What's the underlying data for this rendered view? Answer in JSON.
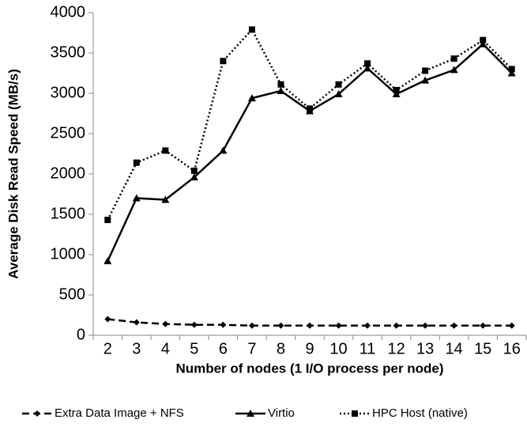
{
  "chart_data": {
    "type": "line",
    "x_label": "Number of nodes (1 I/O process per node)",
    "y_label": "Average Disk Read Speed (MB/s)",
    "categories": [
      "2",
      "3",
      "4",
      "5",
      "6",
      "7",
      "8",
      "9",
      "10",
      "11",
      "12",
      "13",
      "14",
      "15",
      "16"
    ],
    "series": [
      {
        "name": "Extra Data Image + NFS",
        "color": "#000000",
        "dash": "dashed",
        "marker": "diamond",
        "values": [
          200,
          160,
          140,
          130,
          130,
          120,
          120,
          120,
          120,
          120,
          120,
          120,
          120,
          120,
          120
        ]
      },
      {
        "name": "Virtio",
        "color": "#000000",
        "dash": "solid",
        "marker": "triangle",
        "values": [
          920,
          1700,
          1680,
          1960,
          2290,
          2940,
          3030,
          2780,
          2990,
          3310,
          2990,
          3160,
          3290,
          3610,
          3250
        ]
      },
      {
        "name": "HPC Host (native)",
        "color": "#000000",
        "dash": "dotted",
        "marker": "square",
        "values": [
          1430,
          2140,
          2290,
          2040,
          3400,
          3790,
          3110,
          2810,
          3110,
          3370,
          3040,
          3280,
          3430,
          3660,
          3300
        ]
      }
    ],
    "ylim": [
      0,
      4000
    ],
    "yticks": [
      0,
      500,
      1000,
      1500,
      2000,
      2500,
      3000,
      3500,
      4000
    ],
    "grid": false,
    "legend": "bottom"
  }
}
